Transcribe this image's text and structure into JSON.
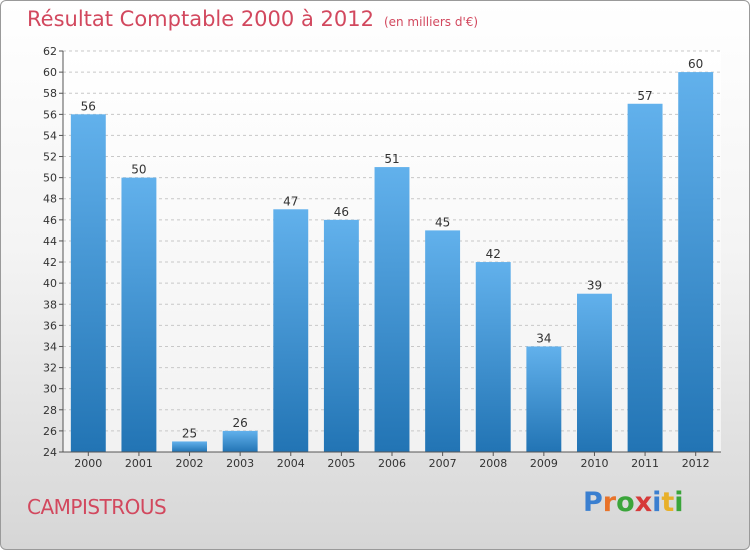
{
  "title": "Résultat Comptable 2000 à 2012",
  "subtitle": "(en milliers d'€)",
  "commune": "CAMPISTROUS",
  "logo": {
    "letters": [
      "P",
      "r",
      "o",
      "x",
      "i",
      "t",
      "i"
    ],
    "colors": [
      "#3a7fd0",
      "#e8732a",
      "#3aa53a",
      "#d63a3a",
      "#3a7fd0",
      "#e8b02a",
      "#3aa53a"
    ]
  },
  "colors": {
    "bar_light": "#62b1ec",
    "bar_dark": "#2274b4",
    "title": "#d2485e",
    "grid": "#c8c8c8"
  },
  "chart_data": {
    "type": "bar",
    "title": "Résultat Comptable 2000 à 2012",
    "subtitle": "(en milliers d'€)",
    "categories": [
      "2000",
      "2001",
      "2002",
      "2003",
      "2004",
      "2005",
      "2006",
      "2007",
      "2008",
      "2009",
      "2010",
      "2011",
      "2012"
    ],
    "values": [
      56,
      50,
      25,
      26,
      47,
      46,
      51,
      45,
      42,
      34,
      39,
      57,
      60
    ],
    "ylim": [
      24,
      62
    ],
    "ytick_step": 2,
    "xlabel": "",
    "ylabel": "",
    "grid": true,
    "data_labels": true
  }
}
